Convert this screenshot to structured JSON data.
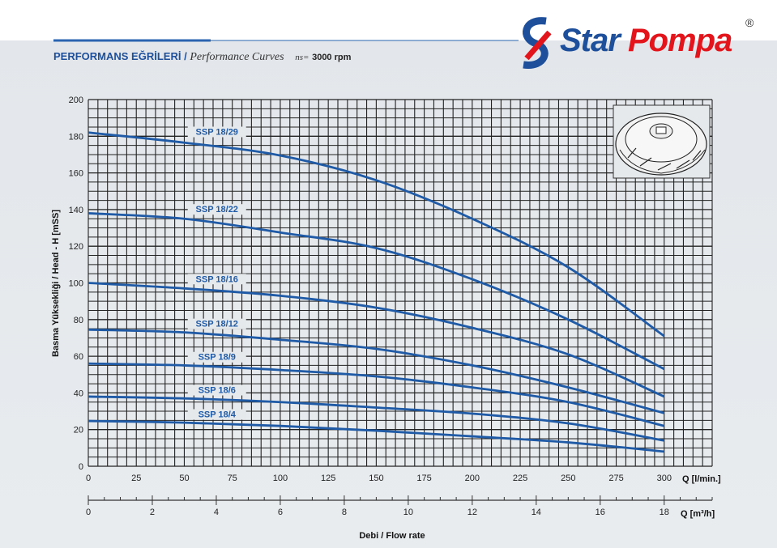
{
  "header": {
    "title_tr": "PERFORMANS EĞRİLERİ",
    "separator": "/",
    "title_en": "Performance Curves",
    "ns_label": "ns=",
    "rpm": "3000 rpm"
  },
  "logo": {
    "word1": "Star",
    "word2": "Pompa",
    "registered": "®"
  },
  "colors": {
    "curve": "#1f5aa6",
    "grid": "#1a1a1a",
    "brand_blue": "#1e4f9a",
    "brand_red": "#e3151c"
  },
  "chart_data": {
    "type": "line",
    "title": "Performance Curves",
    "ylabel": "Basma Yüksekliği / Head - H [mSS]",
    "xlabel": "Debi / Flow rate",
    "x_unit_primary": "Q [l/min.]",
    "x_unit_secondary": "Q [m³/h]",
    "xlim": [
      0,
      325
    ],
    "ylim": [
      0,
      200
    ],
    "grid": true,
    "yticks": [
      0,
      20,
      40,
      60,
      80,
      100,
      120,
      140,
      160,
      180,
      200
    ],
    "xticks": [
      0,
      25,
      50,
      75,
      100,
      125,
      150,
      175,
      200,
      225,
      250,
      275,
      300
    ],
    "xticks_m3h": [
      0,
      2,
      4,
      6,
      8,
      10,
      12,
      14,
      16,
      18
    ],
    "x": [
      0,
      50,
      100,
      150,
      200,
      250,
      300
    ],
    "series": [
      {
        "name": "SSP 18/29",
        "values": [
          182,
          176.5,
          169.5,
          156,
          135,
          108.5,
          71
        ]
      },
      {
        "name": "SSP 18/22",
        "values": [
          138,
          135,
          127.5,
          119,
          102,
          80,
          53
        ]
      },
      {
        "name": "SSP 18/16",
        "values": [
          100,
          97,
          93,
          86.5,
          75.5,
          61,
          38
        ]
      },
      {
        "name": "SSP 18/12",
        "values": [
          74.5,
          73,
          69,
          64,
          55,
          43,
          29
        ]
      },
      {
        "name": "SSP 18/9",
        "values": [
          56,
          55,
          52.5,
          49,
          43,
          35,
          22
        ]
      },
      {
        "name": "SSP 18/6",
        "values": [
          38,
          37,
          35,
          32,
          28.7,
          23.4,
          14
        ]
      },
      {
        "name": "SSP 18/4",
        "values": [
          24.7,
          23.8,
          22,
          19.4,
          16.3,
          13,
          8
        ]
      }
    ],
    "label_positions_x": [
      0,
      50,
      100,
      150,
      200,
      250,
      300
    ]
  }
}
